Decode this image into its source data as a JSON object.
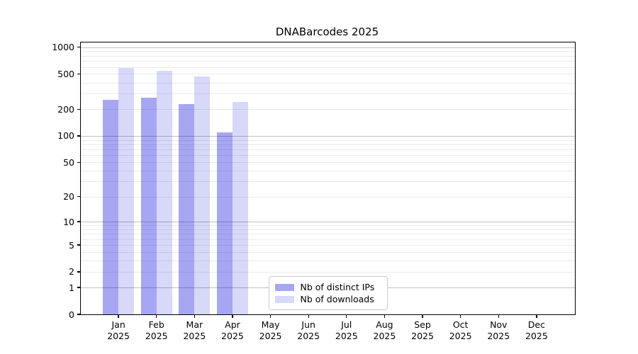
{
  "figure_title": "DNABarcodes 2025",
  "chart_data": {
    "type": "bar",
    "title": "DNABarcodes 2025",
    "xlabel": "",
    "ylabel": "",
    "categories": [
      "Jan 2025",
      "Feb 2025",
      "Mar 2025",
      "Apr 2025",
      "May 2025",
      "Jun 2025",
      "Jul 2025",
      "Aug 2025",
      "Sep 2025",
      "Oct 2025",
      "Nov 2025",
      "Dec 2025"
    ],
    "series": [
      {
        "name": "Nb of distinct IPs",
        "color": "#a6a6f2",
        "values": [
          254,
          272,
          227,
          109,
          null,
          null,
          null,
          null,
          null,
          null,
          null,
          null
        ]
      },
      {
        "name": "Nb of downloads",
        "color": "#d8d8f8",
        "values": [
          582,
          547,
          466,
          244,
          null,
          null,
          null,
          null,
          null,
          null,
          null,
          null
        ]
      }
    ],
    "y_axis": {
      "scale": "log1p",
      "ylim": [
        0,
        1130
      ],
      "tick_values": [
        0,
        1,
        2,
        5,
        10,
        20,
        50,
        100,
        200,
        500,
        1000
      ],
      "tick_labels": [
        "0",
        "1",
        "2",
        "5",
        "10",
        "20",
        "50",
        "100",
        "200",
        "500",
        "1000"
      ],
      "major_gridlines": [
        1,
        10,
        100,
        1000
      ],
      "minor_gridlines": [
        2,
        3,
        4,
        5,
        6,
        7,
        8,
        9,
        20,
        30,
        40,
        50,
        60,
        70,
        80,
        90,
        200,
        300,
        400,
        500,
        600,
        700,
        800,
        900
      ]
    },
    "grid": {
      "major_color": "rgba(0,0,0,0.24)",
      "minor_color": "rgba(0,0,0,0.08)",
      "grid_on": true
    },
    "legend": {
      "position": "lower-center",
      "entries": [
        "Nb of distinct IPs",
        "Nb of downloads"
      ]
    }
  }
}
